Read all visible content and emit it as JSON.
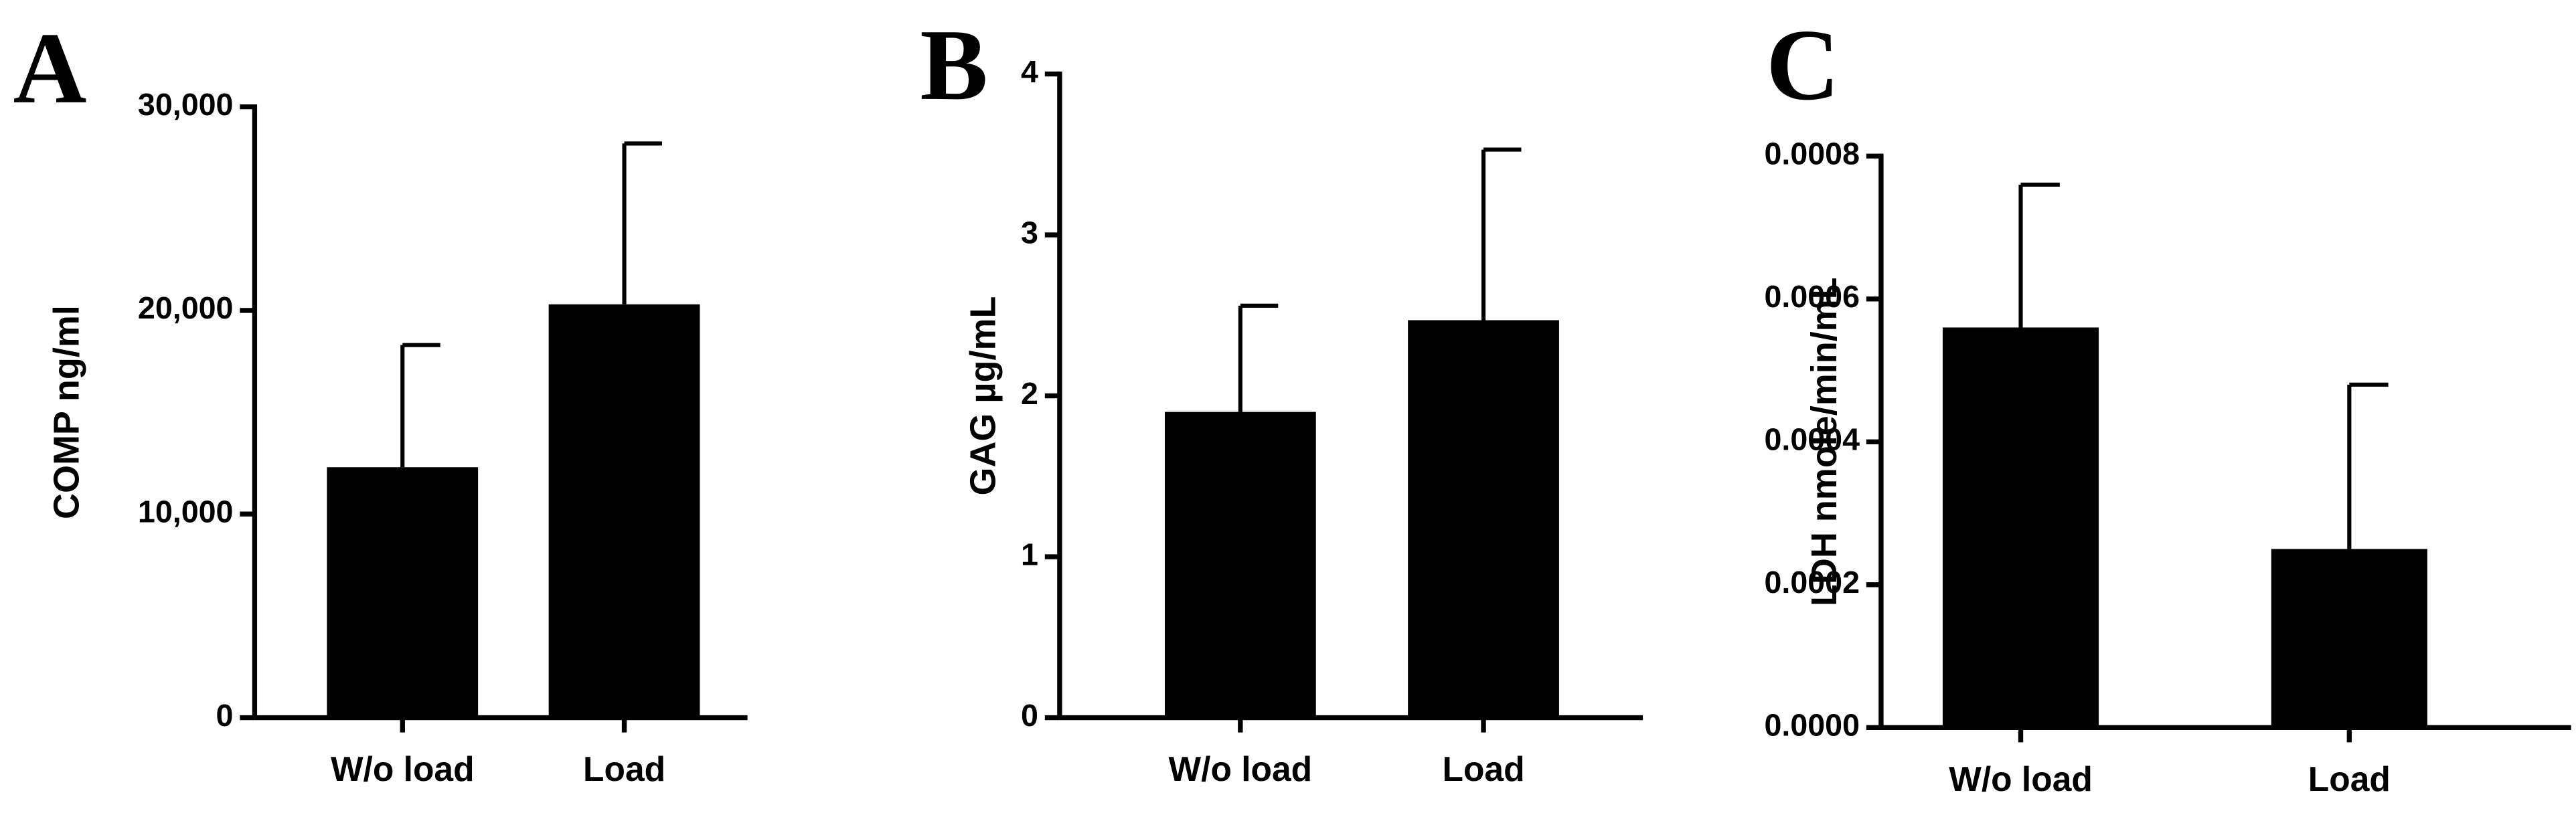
{
  "chart_data": [
    {
      "type": "bar",
      "title": "A",
      "ylabel": "COMP ng/ml",
      "categories": [
        "W/o load",
        "Load"
      ],
      "values": [
        12300,
        20300
      ],
      "errors": [
        6000,
        7900
      ],
      "color": "#000000",
      "ylim": [
        0,
        30000
      ],
      "yticks": [
        0,
        {
          "value": 10000,
          "label": "10,000"
        },
        {
          "value": 20000,
          "label": "20,000"
        },
        {
          "value": 30000,
          "label": "30,000"
        }
      ]
    },
    {
      "type": "bar",
      "title": "B",
      "ylabel": "GAG µg/mL",
      "categories": [
        "W/o load",
        "Load"
      ],
      "values": [
        1.9,
        2.47
      ],
      "errors": [
        0.66,
        1.06
      ],
      "color": "#000000",
      "ylim": [
        0,
        4
      ],
      "yticks": [
        0,
        1,
        2,
        3,
        4
      ]
    },
    {
      "type": "bar",
      "title": "C",
      "ylabel": "LDH nmole/min/mL",
      "categories": [
        "W/o load",
        "Load"
      ],
      "values": [
        0.00056,
        0.00025
      ],
      "errors": [
        0.0002,
        0.00023
      ],
      "color": "#000000",
      "ylim": [
        0,
        0.0008
      ],
      "yticks": [
        {
          "value": 0,
          "label": "0.0000"
        },
        {
          "value": 0.0002,
          "label": "0.0002"
        },
        {
          "value": 0.0004,
          "label": "0.0004"
        },
        {
          "value": 0.0006,
          "label": "0.0006"
        },
        {
          "value": 0.0008,
          "label": "0.0008"
        }
      ]
    }
  ]
}
